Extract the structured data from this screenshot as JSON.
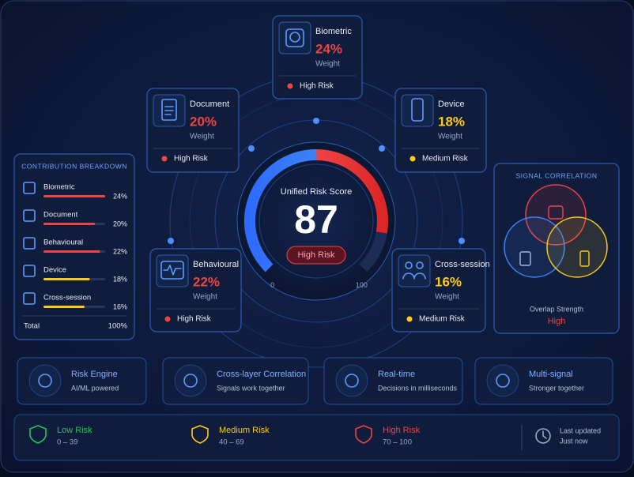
{
  "risk_cards": [
    {
      "name": "Biometric",
      "weight": 24,
      "weight_label": "24%",
      "caption": "Weight",
      "risk": "High Risk",
      "color": "#ef4444"
    },
    {
      "name": "Document",
      "weight": 20,
      "weight_label": "20%",
      "caption": "Weight",
      "risk": "High Risk",
      "color": "#ef4444"
    },
    {
      "name": "Device",
      "weight": 18,
      "weight_label": "18%",
      "caption": "Weight",
      "risk": "Medium Risk",
      "color": "#facc15"
    },
    {
      "name": "Behavioural",
      "weight": 22,
      "weight_label": "22%",
      "caption": "Weight",
      "risk": "High Risk",
      "color": "#ef4444"
    },
    {
      "name": "Cross-session",
      "weight": 16,
      "weight_label": "16%",
      "caption": "Weight",
      "risk": "Medium Risk",
      "color": "#facc15"
    }
  ],
  "gauge": {
    "title": "Unified Risk Score",
    "value": 87,
    "min": 0,
    "max": 100,
    "badge": "High Risk"
  },
  "contribution": {
    "title": "CONTRIBUTION BREAKDOWN",
    "items": [
      {
        "name": "Biometric",
        "value": 24,
        "value_label": "24%",
        "color": "#ef4444"
      },
      {
        "name": "Document",
        "value": 20,
        "value_label": "20%",
        "color": "#ef4444"
      },
      {
        "name": "Behavioural",
        "value": 22,
        "value_label": "22%",
        "color": "#ef4444"
      },
      {
        "name": "Device",
        "value": 18,
        "value_label": "18%",
        "color": "#facc15"
      },
      {
        "name": "Cross-session",
        "value": 16,
        "value_label": "16%",
        "color": "#facc15"
      }
    ],
    "total_label": "Total",
    "total": "100%"
  },
  "signal_correlation": {
    "title": "SIGNAL CORRELATION",
    "overlap_label": "Overlap Strength",
    "overlap_value": "High"
  },
  "features": [
    {
      "title": "Risk Engine",
      "subtitle": "AI/ML powered"
    },
    {
      "title": "Cross-layer Correlation",
      "subtitle": "Signals work together"
    },
    {
      "title": "Real-time",
      "subtitle": "Decisions in milliseconds"
    },
    {
      "title": "Multi-signal",
      "subtitle": "Stronger together"
    }
  ],
  "legend": [
    {
      "label": "Low Risk",
      "range": "0 – 39",
      "color": "#22c55e"
    },
    {
      "label": "Medium Risk",
      "range": "40 – 69",
      "color": "#facc15"
    },
    {
      "label": "High Risk",
      "range": "70 – 100",
      "color": "#ef4444"
    }
  ],
  "last_updated": {
    "label": "Last updated",
    "value": "Just now"
  }
}
